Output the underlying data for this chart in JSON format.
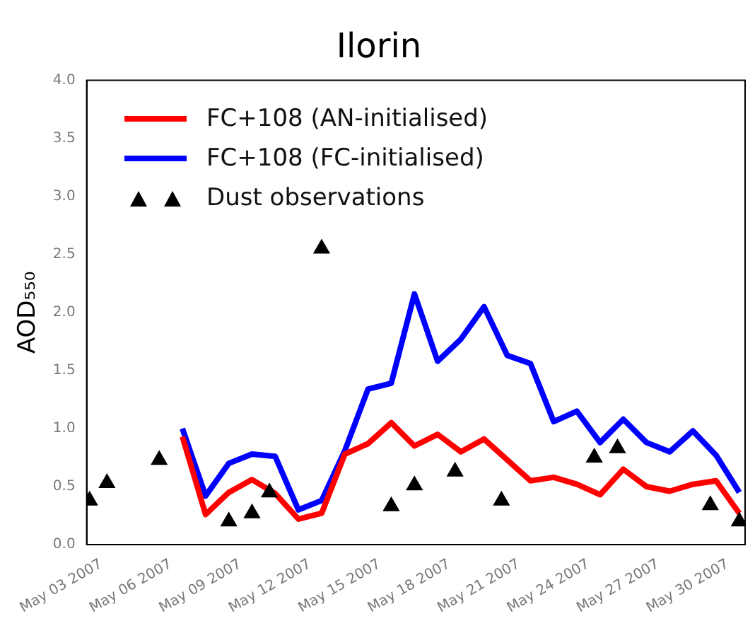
{
  "chart_data": {
    "type": "line",
    "title": "Ilorin",
    "ylabel": "AOD₅₅₀",
    "x": [
      "2007-05-06T12:00",
      "2007-05-07T12:00",
      "2007-05-08T12:00",
      "2007-05-09T12:00",
      "2007-05-10T12:00",
      "2007-05-11T12:00",
      "2007-05-12T12:00",
      "2007-05-13T12:00",
      "2007-05-14T12:00",
      "2007-05-15T12:00",
      "2007-05-16T12:00",
      "2007-05-17T12:00",
      "2007-05-18T12:00",
      "2007-05-19T12:00",
      "2007-05-20T12:00",
      "2007-05-21T12:00",
      "2007-05-22T12:00",
      "2007-05-23T12:00",
      "2007-05-24T12:00",
      "2007-05-25T12:00",
      "2007-05-26T12:00",
      "2007-05-27T12:00",
      "2007-05-28T12:00",
      "2007-05-29T12:00",
      "2007-05-30T12:00"
    ],
    "series": [
      {
        "name": "FC+108 (AN-initialised)",
        "color": "#ff0000",
        "values": [
          0.93,
          0.26,
          0.45,
          0.56,
          0.44,
          0.22,
          0.27,
          0.78,
          0.87,
          1.05,
          0.85,
          0.95,
          0.8,
          0.91,
          0.73,
          0.55,
          0.58,
          0.52,
          0.43,
          0.65,
          0.5,
          0.46,
          0.52,
          0.55,
          0.27
        ]
      },
      {
        "name": "FC+108 (FC-initialised)",
        "color": "#0000ff",
        "values": [
          1.0,
          0.42,
          0.7,
          0.78,
          0.76,
          0.3,
          0.38,
          0.81,
          1.34,
          1.39,
          2.16,
          1.58,
          1.77,
          2.05,
          1.63,
          1.56,
          1.06,
          1.15,
          0.88,
          1.08,
          0.88,
          0.8,
          0.98,
          0.77,
          0.45
        ]
      },
      {
        "name": "Dust observations",
        "type": "scatter",
        "marker": "triangle",
        "color": "#000000",
        "x": [
          "2007-05-02T12:00",
          "2007-05-03T06:00",
          "2007-05-05T12:00",
          "2007-05-08T12:00",
          "2007-05-09T12:00",
          "2007-05-10T06:00",
          "2007-05-12T12:00",
          "2007-05-15T12:00",
          "2007-05-16T12:00",
          "2007-05-18T06:00",
          "2007-05-20T06:00",
          "2007-05-24T06:00",
          "2007-05-25T06:00",
          "2007-05-29T06:00",
          "2007-05-30T12:00"
        ],
        "values": [
          0.38,
          0.53,
          0.73,
          0.2,
          0.27,
          0.45,
          2.55,
          0.33,
          0.51,
          0.63,
          0.38,
          0.75,
          0.83,
          0.34,
          0.2
        ]
      }
    ],
    "xlim": [
      "2007-05-02T09:00",
      "2007-05-30T18:00"
    ],
    "xticks": [
      {
        "value": "2007-05-03",
        "label": "May 03 2007"
      },
      {
        "value": "2007-05-06",
        "label": "May 06 2007"
      },
      {
        "value": "2007-05-09",
        "label": "May 09 2007"
      },
      {
        "value": "2007-05-12",
        "label": "May 12 2007"
      },
      {
        "value": "2007-05-15",
        "label": "May 15 2007"
      },
      {
        "value": "2007-05-18",
        "label": "May 18 2007"
      },
      {
        "value": "2007-05-21",
        "label": "May 21 2007"
      },
      {
        "value": "2007-05-24",
        "label": "May 24 2007"
      },
      {
        "value": "2007-05-27",
        "label": "May 27 2007"
      },
      {
        "value": "2007-05-30",
        "label": "May 30 2007"
      }
    ],
    "ylim": [
      0,
      4
    ],
    "yticks": [
      {
        "value": 0,
        "label": "0.0"
      },
      {
        "value": 0.5,
        "label": "0.5"
      },
      {
        "value": 1,
        "label": "1.0"
      },
      {
        "value": 1.5,
        "label": "1.5"
      },
      {
        "value": 2,
        "label": "2.0"
      },
      {
        "value": 2.5,
        "label": "2.5"
      },
      {
        "value": 3,
        "label": "3.0"
      },
      {
        "value": 3.5,
        "label": "3.5"
      },
      {
        "value": 4,
        "label": "4.0"
      }
    ],
    "grid": false,
    "legend": "top left",
    "line_style": "solid"
  }
}
